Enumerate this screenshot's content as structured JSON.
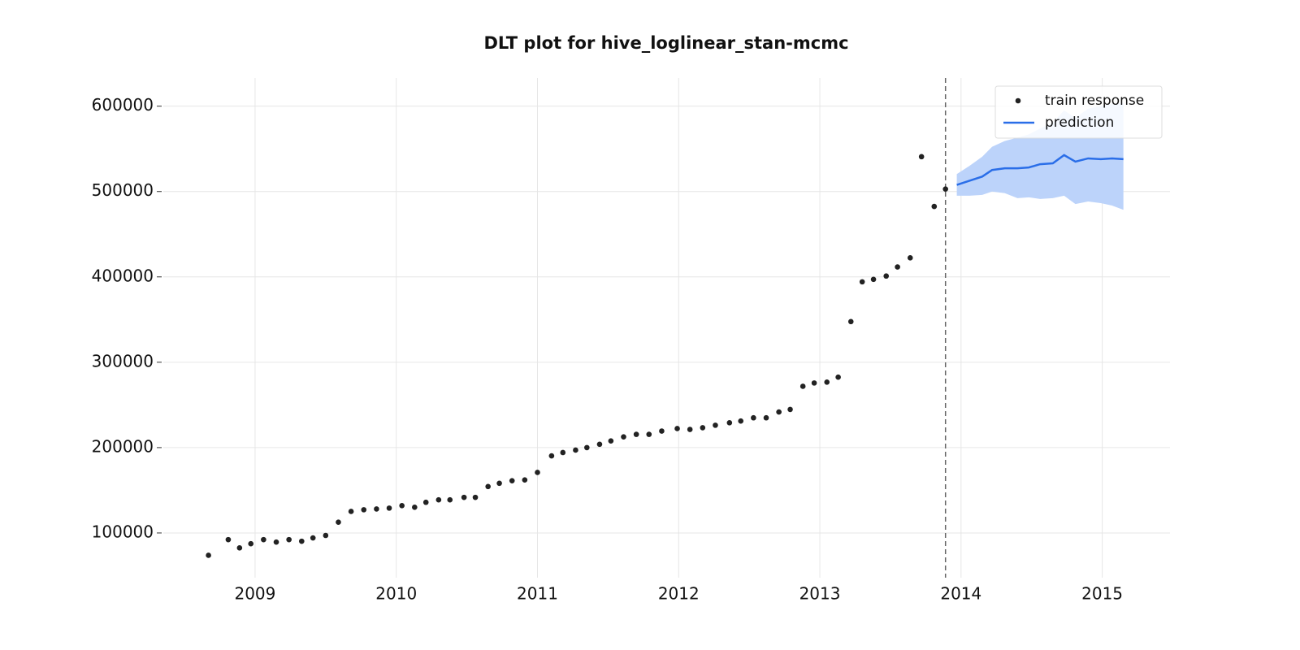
{
  "chart_data": {
    "type": "scatter_line",
    "title": "DLT plot for hive_loglinear_stan-mcmc",
    "xlim": [
      2008.35,
      2015.48
    ],
    "ylim": [
      47600,
      633000
    ],
    "xticks": [
      2009,
      2010,
      2011,
      2012,
      2013,
      2014,
      2015
    ],
    "yticks": [
      100000,
      200000,
      300000,
      400000,
      500000,
      600000
    ],
    "grid": true,
    "legend": "upper right",
    "cutoff": 2013.89,
    "series": [
      {
        "name": "train response",
        "kind": "scatter",
        "color": "#222222",
        "x": [
          2008.67,
          2008.81,
          2008.89,
          2008.97,
          2009.06,
          2009.15,
          2009.24,
          2009.33,
          2009.41,
          2009.5,
          2009.59,
          2009.68,
          2009.77,
          2009.86,
          2009.95,
          2010.04,
          2010.13,
          2010.21,
          2010.3,
          2010.38,
          2010.48,
          2010.56,
          2010.65,
          2010.73,
          2010.82,
          2010.91,
          2011.0,
          2011.1,
          2011.18,
          2011.27,
          2011.35,
          2011.44,
          2011.52,
          2011.61,
          2011.7,
          2011.79,
          2011.88,
          2011.99,
          2012.08,
          2012.17,
          2012.26,
          2012.36,
          2012.44,
          2012.53,
          2012.62,
          2012.71,
          2012.79,
          2012.88,
          2012.96,
          2013.05,
          2013.13,
          2013.22,
          2013.3,
          2013.38,
          2013.47,
          2013.55,
          2013.64,
          2013.72,
          2013.81,
          2013.89
        ],
        "values": [
          73800,
          92200,
          82500,
          87400,
          92200,
          89300,
          92200,
          90300,
          94200,
          97100,
          112600,
          125200,
          127200,
          128100,
          129100,
          132000,
          130100,
          135900,
          138800,
          138800,
          141700,
          141700,
          154400,
          158200,
          161200,
          162100,
          170900,
          190300,
          194200,
          197100,
          200000,
          203900,
          207800,
          212600,
          215500,
          215500,
          219400,
          222300,
          221300,
          223300,
          226200,
          229100,
          231100,
          234900,
          234900,
          241700,
          244700,
          271800,
          275700,
          276700,
          282500,
          347600,
          394200,
          397100,
          401000,
          411600,
          422300,
          540800,
          482500,
          502900
        ]
      },
      {
        "name": "prediction",
        "kind": "line",
        "color": "#2a6ee8",
        "band_color": "#bcd3fa",
        "x": [
          2013.97,
          2014.06,
          2014.15,
          2014.22,
          2014.31,
          2014.4,
          2014.48,
          2014.56,
          2014.65,
          2014.73,
          2014.81,
          2014.9,
          2014.99,
          2015.07,
          2015.15
        ],
        "values": [
          507800,
          512600,
          517500,
          525200,
          527200,
          527200,
          528200,
          532000,
          533000,
          542700,
          535000,
          538800,
          537900,
          538800,
          537900
        ],
        "upper": [
          520400,
          530100,
          540800,
          552400,
          559200,
          563100,
          567000,
          573800,
          580600,
          595100,
          586400,
          597100,
          600000,
          602900,
          603900
        ],
        "lower": [
          495100,
          495100,
          496100,
          500000,
          498100,
          492200,
          493200,
          491300,
          492200,
          495100,
          485400,
          488300,
          486400,
          483500,
          478600
        ]
      }
    ]
  }
}
